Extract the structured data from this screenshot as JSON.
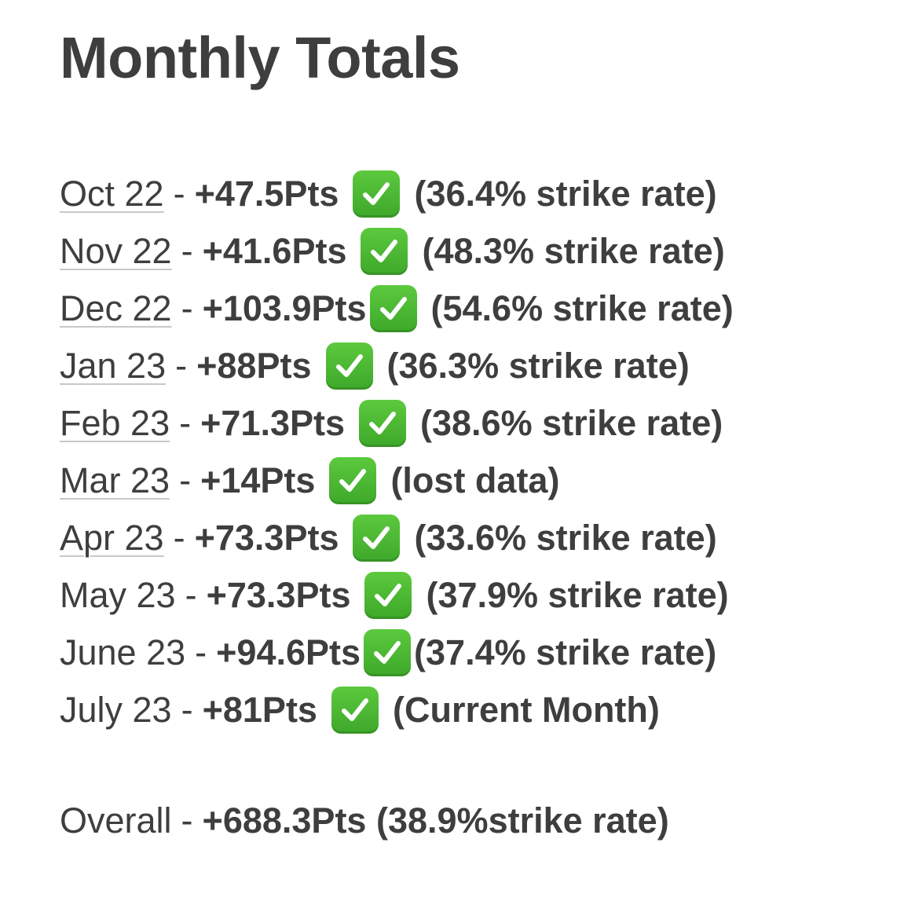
{
  "title": "Monthly Totals",
  "rows": [
    {
      "month": "Oct 22",
      "sep": "-",
      "pts": "+47.5Pts",
      "note": "(36.4% strike rate)"
    },
    {
      "month": "Nov 22",
      "sep": "-",
      "pts": "+41.6Pts",
      "note": "(48.3% strike rate)"
    },
    {
      "month": "Dec 22",
      "sep": "-",
      "pts": "+103.9Pts",
      "note": "(54.6% strike rate)"
    },
    {
      "month": "Jan 23",
      "sep": "-",
      "pts": "+88Pts",
      "note": "(36.3% strike rate)"
    },
    {
      "month": "Feb 23",
      "sep": "-",
      "pts": "+71.3Pts",
      "note": "(38.6% strike rate)"
    },
    {
      "month": "Mar 23",
      "sep": "-",
      "pts": "+14Pts",
      "note": "(lost data)"
    },
    {
      "month": "Apr 23",
      "sep": "-",
      "pts": "+73.3Pts",
      "note": "(33.6% strike rate)"
    },
    {
      "month": "May 23",
      "sep": "-",
      "pts": "+73.3Pts",
      "note": "(37.9% strike rate)"
    },
    {
      "month": "June 23",
      "sep": "-",
      "pts": "+94.6Pts",
      "note": "(37.4% strike rate)"
    },
    {
      "month": "July 23",
      "sep": "-",
      "pts": "+81Pts",
      "note": "(Current Month)"
    }
  ],
  "check_icon": "check-mark-button-icon",
  "check_color": "#4cb933",
  "overall": {
    "label": "Overall",
    "sep": "-",
    "pts": "+688.3Pts",
    "note": "(38.9%strike rate)"
  }
}
